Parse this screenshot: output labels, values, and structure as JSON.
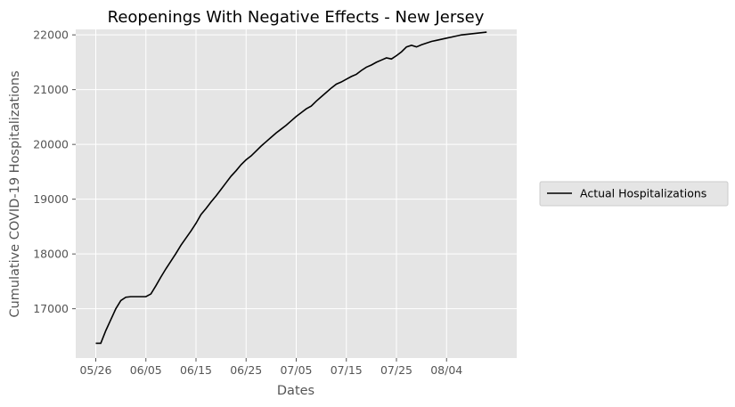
{
  "chart_data": {
    "type": "line",
    "title": "Reopenings With Negative Effects - New Jersey",
    "xlabel": "Dates",
    "ylabel": "Cumulative COVID-19 Hospitalizations",
    "x_start": "05/26",
    "x_ticks": [
      "05/26",
      "06/05",
      "06/15",
      "06/25",
      "07/05",
      "07/15",
      "07/25",
      "08/04"
    ],
    "xlim_days": [
      -4,
      84
    ],
    "ylim": [
      16100,
      22100
    ],
    "y_ticks": [
      17000,
      18000,
      19000,
      20000,
      21000,
      22000
    ],
    "grid": true,
    "legend": "right",
    "series": [
      {
        "name": "Actual Hospitalizations",
        "color": "#000000",
        "x": [
          0,
          1,
          2,
          3,
          4,
          5,
          6,
          7,
          8,
          9,
          10,
          11,
          12,
          13,
          14,
          15,
          16,
          17,
          18,
          19,
          20,
          21,
          22,
          23,
          24,
          25,
          26,
          27,
          28,
          29,
          30,
          31,
          32,
          33,
          34,
          35,
          36,
          37,
          38,
          39,
          40,
          41,
          42,
          43,
          44,
          45,
          46,
          47,
          48,
          49,
          50,
          51,
          52,
          53,
          54,
          55,
          56,
          57,
          58,
          59,
          60,
          61,
          62,
          63,
          64,
          65,
          66,
          67,
          68,
          69,
          70,
          71,
          72,
          73,
          74,
          75,
          76,
          77,
          78,
          79,
          80
        ],
        "values": [
          16370,
          16370,
          16600,
          16800,
          17000,
          17150,
          17210,
          17220,
          17220,
          17220,
          17220,
          17270,
          17420,
          17580,
          17730,
          17870,
          18010,
          18160,
          18290,
          18420,
          18560,
          18720,
          18830,
          18950,
          19060,
          19180,
          19300,
          19420,
          19520,
          19630,
          19720,
          19790,
          19880,
          19970,
          20050,
          20130,
          20210,
          20280,
          20350,
          20430,
          20510,
          20580,
          20650,
          20700,
          20790,
          20870,
          20950,
          21030,
          21100,
          21140,
          21190,
          21240,
          21280,
          21350,
          21410,
          21450,
          21500,
          21540,
          21580,
          21560,
          21620,
          21690,
          21780,
          21810,
          21780,
          21820,
          21850,
          21880,
          21900,
          21920,
          21940,
          21960,
          21980,
          22000,
          22010,
          22020,
          22030,
          22040,
          22050,
          22060,
          22070
        ]
      }
    ]
  }
}
